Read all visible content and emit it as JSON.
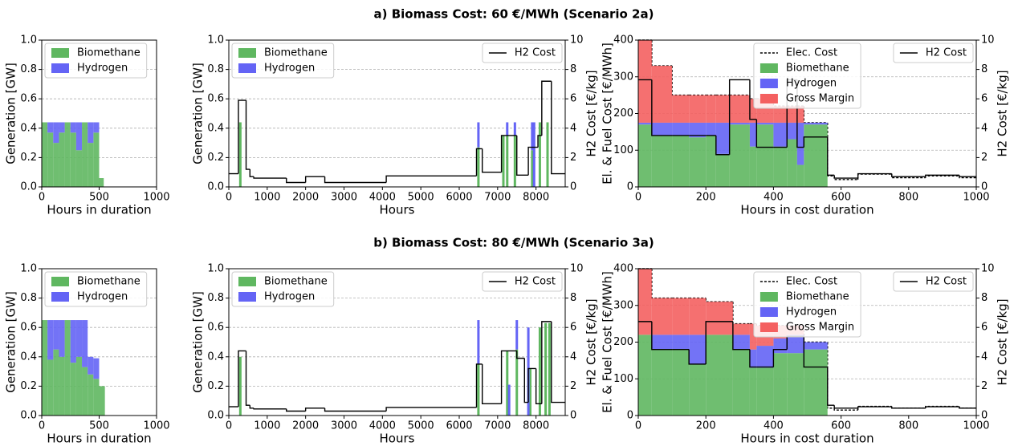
{
  "chart_data": [
    {
      "type": "area",
      "title": "a) Biomass Cost: 60 €/MWh (Scenario 2a)",
      "xlabel": "Hours in duration",
      "ylabel": "Generation [GW]",
      "xlim": [
        0,
        1000
      ],
      "xticks": [
        0,
        500,
        1000
      ],
      "ylim": [
        0,
        1.0
      ],
      "yticks": [
        {
          "value": 0,
          "label": "0.0"
        },
        0.2,
        0.4,
        0.6,
        0.8,
        {
          "value": 1,
          "label": "1.0"
        }
      ],
      "grid": true,
      "legend": "upper left",
      "x": [
        0,
        50,
        100,
        150,
        200,
        250,
        300,
        350,
        400,
        450,
        500,
        540
      ],
      "series": [
        {
          "name": "Biomethane",
          "color": "#5fb760",
          "kind": "area",
          "values": [
            0.44,
            0.37,
            0.3,
            0.37,
            0.44,
            0.37,
            0.25,
            0.44,
            0.3,
            0.37,
            0.06,
            0
          ]
        },
        {
          "name": "Hydrogen",
          "color": "#6464f5",
          "kind": "area",
          "values": [
            0,
            0.07,
            0.14,
            0.07,
            0,
            0.07,
            0.19,
            0,
            0.14,
            0.07,
            0,
            0
          ]
        }
      ]
    },
    {
      "type": "bar",
      "xlabel": "Hours",
      "ylabel": "Generation [GW]",
      "y2label": "H2 Cost [€/kg]",
      "xlim": [
        0,
        8760
      ],
      "xticks": [
        0,
        1000,
        2000,
        3000,
        4000,
        5000,
        6000,
        7000,
        8000
      ],
      "ylim": [
        0,
        1.0
      ],
      "yticks": [
        {
          "value": 0,
          "label": "0.0"
        },
        0.2,
        0.4,
        0.6,
        0.8,
        {
          "value": 1,
          "label": "1.0"
        }
      ],
      "y2lim": [
        0,
        10
      ],
      "y2ticks": [
        0,
        2,
        4,
        6,
        8,
        10
      ],
      "grid": true,
      "legend": "upper left",
      "legend2": "upper right",
      "series": [
        {
          "name": "Biomethane",
          "color": "#5fb760",
          "kind": "bar",
          "x": [
            300,
            6500,
            7150,
            7250,
            7450,
            7900,
            8100,
            8300
          ],
          "values": [
            0.44,
            0.27,
            0.35,
            0.35,
            0.35,
            0.25,
            0.44,
            0.44
          ]
        },
        {
          "name": "Hydrogen",
          "color": "#6464f5",
          "kind": "bar",
          "x": [
            6500,
            7250,
            7450,
            7900,
            7950
          ],
          "values": [
            0.17,
            0.09,
            0.09,
            0.19,
            0.44
          ]
        },
        {
          "name": "H2 Cost",
          "color": "#000000",
          "kind": "line",
          "axis": "y2",
          "x": [
            0,
            250,
            450,
            550,
            650,
            1500,
            2000,
            2500,
            4100,
            6450,
            6600,
            7100,
            7500,
            7800,
            8050,
            8150,
            8400
          ],
          "values": [
            0.9,
            5.9,
            1.2,
            0.7,
            0.6,
            0.3,
            0.7,
            0.3,
            0.75,
            2.6,
            1.0,
            3.5,
            0.8,
            2.7,
            3.5,
            7.2,
            0.9
          ]
        }
      ]
    },
    {
      "type": "area",
      "xlabel": "Hours in cost duration",
      "ylabel": "El. & Fuel Cost [€/MWh]",
      "y2label": "H2 Cost [€/kg]",
      "xlim": [
        0,
        1000
      ],
      "xticks": [
        0,
        200,
        400,
        600,
        800,
        1000
      ],
      "ylim": [
        0,
        400
      ],
      "yticks": [
        0,
        100,
        200,
        300,
        400
      ],
      "y2lim": [
        0,
        10
      ],
      "y2ticks": [
        0,
        2,
        4,
        6,
        8,
        10
      ],
      "grid": true,
      "legend": "upper center",
      "legend2": "upper right",
      "x": [
        0,
        40,
        100,
        150,
        200,
        230,
        270,
        330,
        350,
        400,
        440,
        470,
        490,
        560,
        580,
        650,
        750,
        850,
        950
      ],
      "series": [
        {
          "name": "Elec. Cost",
          "color": "#000000",
          "kind": "line",
          "style": "dashed",
          "values": [
            400,
            330,
            250,
            250,
            250,
            250,
            250,
            240,
            240,
            220,
            220,
            220,
            175,
            30,
            20,
            35,
            25,
            30,
            25
          ]
        },
        {
          "name": "Biomethane",
          "color": "#5fb760",
          "kind": "area",
          "values": [
            170,
            140,
            140,
            135,
            140,
            90,
            170,
            110,
            170,
            110,
            130,
            60,
            170,
            0,
            0,
            0,
            0,
            0,
            0
          ]
        },
        {
          "name": "Hydrogen",
          "color": "#6464f5",
          "kind": "area",
          "values": [
            5,
            35,
            35,
            40,
            35,
            85,
            5,
            65,
            5,
            65,
            45,
            115,
            5,
            0,
            0,
            0,
            0,
            0,
            0
          ]
        },
        {
          "name": "Gross Margin",
          "color": "#f46060",
          "kind": "area",
          "values": [
            225,
            155,
            75,
            75,
            75,
            75,
            75,
            65,
            65,
            45,
            45,
            45,
            0,
            0,
            0,
            0,
            0,
            0,
            0
          ]
        },
        {
          "name": "H2 Cost",
          "color": "#000000",
          "kind": "line",
          "axis": "y2",
          "values": [
            7.3,
            3.5,
            3.5,
            3.5,
            3.5,
            2.2,
            7.3,
            4.6,
            2.7,
            2.7,
            7.3,
            2.7,
            3.4,
            0.8,
            0.6,
            0.9,
            0.7,
            0.8,
            0.7
          ]
        }
      ]
    },
    {
      "type": "area",
      "title": "b) Biomass Cost: 80 €/MWh (Scenario 3a)",
      "xlabel": "Hours in duration",
      "ylabel": "Generation [GW]",
      "xlim": [
        0,
        1000
      ],
      "xticks": [
        0,
        500,
        1000
      ],
      "ylim": [
        0,
        1.0
      ],
      "yticks": [
        {
          "value": 0,
          "label": "0.0"
        },
        0.2,
        0.4,
        0.6,
        0.8,
        {
          "value": 1,
          "label": "1.0"
        }
      ],
      "grid": true,
      "legend": "upper left",
      "x": [
        0,
        50,
        100,
        150,
        200,
        250,
        300,
        350,
        400,
        450,
        500,
        550
      ],
      "series": [
        {
          "name": "Biomethane",
          "color": "#5fb760",
          "kind": "area",
          "values": [
            0.65,
            0.38,
            0.45,
            0.4,
            0.65,
            0.36,
            0.4,
            0.33,
            0.28,
            0.25,
            0.2,
            0
          ]
        },
        {
          "name": "Hydrogen",
          "color": "#6464f5",
          "kind": "area",
          "values": [
            0,
            0.27,
            0.2,
            0.25,
            0,
            0.29,
            0.25,
            0.32,
            0.12,
            0.14,
            0,
            0
          ]
        }
      ]
    },
    {
      "type": "bar",
      "xlabel": "Hours",
      "ylabel": "Generation [GW]",
      "y2label": "H2 Cost [€/kg]",
      "xlim": [
        0,
        8760
      ],
      "xticks": [
        0,
        1000,
        2000,
        3000,
        4000,
        5000,
        6000,
        7000,
        8000
      ],
      "ylim": [
        0,
        1.0
      ],
      "yticks": [
        {
          "value": 0,
          "label": "0.0"
        },
        0.2,
        0.4,
        0.6,
        0.8,
        {
          "value": 1,
          "label": "1.0"
        }
      ],
      "y2lim": [
        0,
        10
      ],
      "y2ticks": [
        0,
        2,
        4,
        6,
        8,
        10
      ],
      "grid": true,
      "legend": "upper left",
      "legend2": "upper right",
      "series": [
        {
          "name": "Biomethane",
          "color": "#5fb760",
          "kind": "bar",
          "x": [
            300,
            6500,
            7250,
            7500,
            7850,
            8100,
            8250,
            8350
          ],
          "values": [
            0.4,
            0.35,
            0.44,
            0.45,
            0.32,
            0.6,
            0.63,
            0.63
          ]
        },
        {
          "name": "Hydrogen",
          "color": "#6464f5",
          "kind": "bar",
          "x": [
            6500,
            7300,
            7500,
            7800
          ],
          "values": [
            0.3,
            0.21,
            0.2,
            0.6
          ]
        },
        {
          "name": "H2 Cost",
          "color": "#000000",
          "kind": "line",
          "axis": "y2",
          "x": [
            0,
            250,
            450,
            550,
            650,
            1500,
            2000,
            2500,
            4100,
            6450,
            6600,
            7100,
            7500,
            7700,
            7800,
            8000,
            8150,
            8400
          ],
          "values": [
            0.6,
            4.4,
            0.7,
            0.5,
            0.45,
            0.3,
            0.5,
            0.3,
            0.55,
            3.5,
            0.8,
            4.4,
            3.9,
            0.9,
            3.2,
            0.8,
            6.4,
            0.9
          ]
        }
      ]
    },
    {
      "type": "area",
      "xlabel": "Hours in cost duration",
      "ylabel": "El. & Fuel Cost [€/MWh]",
      "y2label": "H2 Cost [€/kg]",
      "xlim": [
        0,
        1000
      ],
      "xticks": [
        0,
        200,
        400,
        600,
        800,
        1000
      ],
      "ylim": [
        0,
        400
      ],
      "yticks": [
        0,
        100,
        200,
        300,
        400
      ],
      "y2lim": [
        0,
        10
      ],
      "y2ticks": [
        0,
        2,
        4,
        6,
        8,
        10
      ],
      "grid": true,
      "legend": "upper center",
      "legend2": "upper right",
      "x": [
        0,
        40,
        100,
        150,
        200,
        280,
        330,
        350,
        400,
        440,
        490,
        560,
        580,
        650,
        750,
        850,
        950
      ],
      "series": [
        {
          "name": "Elec. Cost",
          "color": "#000000",
          "kind": "line",
          "style": "dashed",
          "values": [
            400,
            320,
            320,
            320,
            310,
            250,
            250,
            245,
            245,
            245,
            200,
            20,
            15,
            25,
            20,
            25,
            20
          ]
        },
        {
          "name": "Biomethane",
          "color": "#5fb760",
          "kind": "area",
          "values": [
            220,
            180,
            180,
            140,
            220,
            180,
            130,
            130,
            170,
            170,
            180,
            0,
            0,
            0,
            0,
            0,
            0
          ]
        },
        {
          "name": "Hydrogen",
          "color": "#6464f5",
          "kind": "area",
          "values": [
            0,
            40,
            40,
            80,
            0,
            40,
            50,
            60,
            40,
            50,
            20,
            0,
            0,
            0,
            0,
            0,
            0
          ]
        },
        {
          "name": "Gross Margin",
          "color": "#f46060",
          "kind": "area",
          "values": [
            180,
            100,
            100,
            100,
            90,
            30,
            70,
            55,
            35,
            25,
            0,
            0,
            0,
            0,
            0,
            0,
            0
          ]
        },
        {
          "name": "H2 Cost",
          "color": "#000000",
          "kind": "line",
          "axis": "y2",
          "values": [
            6.4,
            4.5,
            4.5,
            3.5,
            6.4,
            4.5,
            3.3,
            3.3,
            4.5,
            5.4,
            3.3,
            0.7,
            0.5,
            0.6,
            0.5,
            0.6,
            0.5
          ]
        }
      ]
    }
  ]
}
